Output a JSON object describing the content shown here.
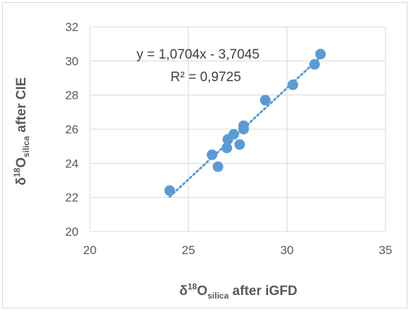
{
  "chart_data": {
    "type": "scatter",
    "title": "",
    "xlabel": {
      "prefix": "δ",
      "sup": "18",
      "main": "O",
      "sub": "silica",
      "suffix": " after iGFD"
    },
    "ylabel": {
      "prefix": "δ",
      "sup": "18",
      "main": "O",
      "sub": "silica",
      "suffix": " after CIE"
    },
    "xlim": [
      20,
      35
    ],
    "ylim": [
      20,
      32
    ],
    "xticks": [
      "20",
      "25",
      "30",
      "35"
    ],
    "yticks": [
      "20",
      "22",
      "24",
      "26",
      "28",
      "30",
      "32"
    ],
    "grid": {
      "x": true,
      "y": true
    },
    "legend": "none",
    "marker_color": "#5b9bd5",
    "series": [
      {
        "points": [
          {
            "x": 24.05,
            "y": 22.4
          },
          {
            "x": 26.2,
            "y": 24.5
          },
          {
            "x": 26.5,
            "y": 23.8
          },
          {
            "x": 26.95,
            "y": 24.9
          },
          {
            "x": 27.0,
            "y": 25.4
          },
          {
            "x": 27.3,
            "y": 25.7
          },
          {
            "x": 27.6,
            "y": 25.1
          },
          {
            "x": 27.8,
            "y": 26.2
          },
          {
            "x": 27.8,
            "y": 26.0
          },
          {
            "x": 28.9,
            "y": 27.7
          },
          {
            "x": 30.3,
            "y": 28.6
          },
          {
            "x": 31.4,
            "y": 29.8
          },
          {
            "x": 31.7,
            "y": 30.4
          }
        ]
      }
    ],
    "trendline": {
      "type": "linear",
      "style": "dotted",
      "slope": 1.0704,
      "intercept": -3.7045,
      "x_range": [
        24.05,
        31.7
      ],
      "equation_label": "y = 1,0704x - 3,7045",
      "r2_label": "R² = 0,9725"
    }
  }
}
